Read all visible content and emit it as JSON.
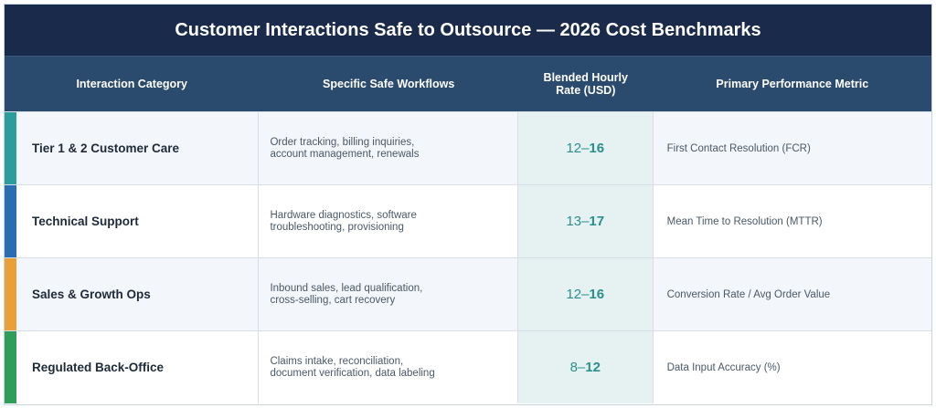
{
  "title": "Customer Interactions Safe to Outsource — 2026 Cost Benchmarks",
  "headers": {
    "category": "Interaction Category",
    "workflows": "Specific Safe Workflows",
    "rate_line1": "Blended Hourly",
    "rate_line2": "Rate (USD)",
    "metric": "Primary Performance Metric"
  },
  "rows": [
    {
      "category": "Tier 1 & 2 Customer Care",
      "workflows_line1": "Order tracking, billing inquiries,",
      "workflows_line2": "account management, renewals",
      "rate_low": "12–",
      "rate_high": "16",
      "metric": "First Contact Resolution (FCR)",
      "accent": "#2a9d9c"
    },
    {
      "category": "Technical Support",
      "workflows_line1": "Hardware diagnostics, software",
      "workflows_line2": "troubleshooting, provisioning",
      "rate_low": "13–",
      "rate_high": "17",
      "metric": "Mean Time to Resolution (MTTR)",
      "accent": "#2a6db0"
    },
    {
      "category": "Sales & Growth Ops",
      "workflows_line1": "Inbound sales, lead qualification,",
      "workflows_line2": "cross-selling, cart recovery",
      "rate_low": "12–",
      "rate_high": "16",
      "metric": "Conversion Rate / Avg Order Value",
      "accent": "#e8a03a"
    },
    {
      "category": "Regulated Back-Office",
      "workflows_line1": "Claims intake, reconciliation,",
      "workflows_line2": "document verification, data labeling",
      "rate_low": "8–",
      "rate_high": "12",
      "metric": "Data Input Accuracy (%)",
      "accent": "#2e9e5a"
    }
  ]
}
